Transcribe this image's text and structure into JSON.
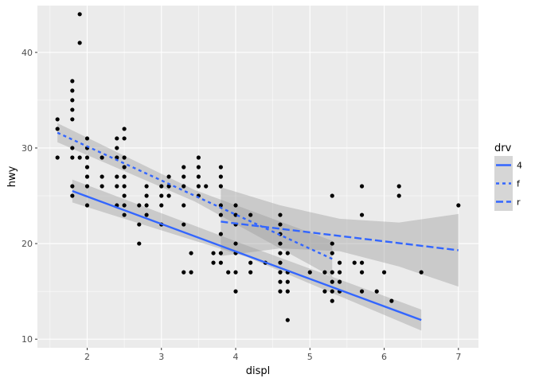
{
  "chart_data": {
    "type": "scatter",
    "xlabel": "displ",
    "ylabel": "hwy",
    "xlim": [
      1.33,
      7.27
    ],
    "ylim": [
      9.1,
      44.9
    ],
    "x_ticks": [
      2,
      3,
      4,
      5,
      6,
      7
    ],
    "y_ticks": [
      10,
      20,
      30,
      40
    ],
    "x_tick_labels": [
      "2",
      "3",
      "4",
      "5",
      "6",
      "7"
    ],
    "y_tick_labels": [
      "10",
      "20",
      "30",
      "40"
    ],
    "grid": true,
    "legend": {
      "title": "drv",
      "position": "right",
      "entries": [
        {
          "label": "4",
          "dash": "solid"
        },
        {
          "label": "f",
          "dash": "short"
        },
        {
          "label": "r",
          "dash": "long"
        }
      ]
    },
    "colors": {
      "panel": "#EBEBEB",
      "grid_major": "#FFFFFF",
      "point": "#000000",
      "line": "#3366FF",
      "ribbon": "#999999"
    },
    "points": [
      [
        1.6,
        33
      ],
      [
        1.6,
        32
      ],
      [
        1.6,
        29
      ],
      [
        1.8,
        37
      ],
      [
        1.8,
        36
      ],
      [
        1.8,
        35
      ],
      [
        1.8,
        34
      ],
      [
        1.8,
        33
      ],
      [
        1.8,
        30
      ],
      [
        1.8,
        29
      ],
      [
        1.8,
        26
      ],
      [
        1.8,
        25
      ],
      [
        1.9,
        44
      ],
      [
        1.9,
        41
      ],
      [
        1.9,
        29
      ],
      [
        2.0,
        31
      ],
      [
        2.0,
        30
      ],
      [
        2.0,
        29
      ],
      [
        2.0,
        28
      ],
      [
        2.0,
        27
      ],
      [
        2.0,
        26
      ],
      [
        2.0,
        24
      ],
      [
        2.2,
        29
      ],
      [
        2.2,
        27
      ],
      [
        2.2,
        26
      ],
      [
        2.4,
        31
      ],
      [
        2.4,
        30
      ],
      [
        2.4,
        29
      ],
      [
        2.4,
        27
      ],
      [
        2.4,
        26
      ],
      [
        2.4,
        24
      ],
      [
        2.5,
        32
      ],
      [
        2.5,
        31
      ],
      [
        2.5,
        29
      ],
      [
        2.5,
        28
      ],
      [
        2.5,
        27
      ],
      [
        2.5,
        26
      ],
      [
        2.5,
        25
      ],
      [
        2.5,
        24
      ],
      [
        2.5,
        23
      ],
      [
        2.7,
        24
      ],
      [
        2.7,
        22
      ],
      [
        2.7,
        20
      ],
      [
        2.8,
        26
      ],
      [
        2.8,
        25
      ],
      [
        2.8,
        24
      ],
      [
        2.8,
        23
      ],
      [
        3.0,
        26
      ],
      [
        3.0,
        25
      ],
      [
        3.0,
        24
      ],
      [
        3.0,
        22
      ],
      [
        3.1,
        27
      ],
      [
        3.1,
        26
      ],
      [
        3.1,
        25
      ],
      [
        3.3,
        28
      ],
      [
        3.3,
        27
      ],
      [
        3.3,
        26
      ],
      [
        3.3,
        24
      ],
      [
        3.3,
        22
      ],
      [
        3.3,
        17
      ],
      [
        3.4,
        19
      ],
      [
        3.4,
        17
      ],
      [
        3.5,
        29
      ],
      [
        3.5,
        28
      ],
      [
        3.5,
        27
      ],
      [
        3.5,
        26
      ],
      [
        3.5,
        25
      ],
      [
        3.6,
        26
      ],
      [
        3.7,
        19
      ],
      [
        3.7,
        18
      ],
      [
        3.8,
        28
      ],
      [
        3.8,
        27
      ],
      [
        3.8,
        26
      ],
      [
        3.8,
        24
      ],
      [
        3.8,
        23
      ],
      [
        3.8,
        21
      ],
      [
        3.8,
        19
      ],
      [
        3.8,
        18
      ],
      [
        3.9,
        17
      ],
      [
        4.0,
        24
      ],
      [
        4.0,
        23
      ],
      [
        4.0,
        22
      ],
      [
        4.0,
        20
      ],
      [
        4.0,
        19
      ],
      [
        4.0,
        17
      ],
      [
        4.0,
        15
      ],
      [
        4.2,
        23
      ],
      [
        4.2,
        18
      ],
      [
        4.2,
        17
      ],
      [
        4.4,
        18
      ],
      [
        4.6,
        23
      ],
      [
        4.6,
        22
      ],
      [
        4.6,
        21
      ],
      [
        4.6,
        20
      ],
      [
        4.6,
        19
      ],
      [
        4.6,
        18
      ],
      [
        4.6,
        17
      ],
      [
        4.6,
        16
      ],
      [
        4.6,
        15
      ],
      [
        4.7,
        19
      ],
      [
        4.7,
        17
      ],
      [
        4.7,
        16
      ],
      [
        4.7,
        15
      ],
      [
        4.7,
        12
      ],
      [
        5.0,
        17
      ],
      [
        5.2,
        17
      ],
      [
        5.2,
        15
      ],
      [
        5.3,
        25
      ],
      [
        5.3,
        20
      ],
      [
        5.3,
        19
      ],
      [
        5.3,
        17
      ],
      [
        5.3,
        16
      ],
      [
        5.3,
        15
      ],
      [
        5.3,
        14
      ],
      [
        5.4,
        18
      ],
      [
        5.4,
        17
      ],
      [
        5.4,
        16
      ],
      [
        5.4,
        15
      ],
      [
        5.6,
        18
      ],
      [
        5.7,
        26
      ],
      [
        5.7,
        23
      ],
      [
        5.7,
        18
      ],
      [
        5.7,
        17
      ],
      [
        5.7,
        15
      ],
      [
        5.9,
        15
      ],
      [
        6.0,
        17
      ],
      [
        6.1,
        14
      ],
      [
        6.2,
        26
      ],
      [
        6.2,
        25
      ],
      [
        6.5,
        17
      ],
      [
        7.0,
        24
      ]
    ],
    "series": [
      {
        "name": "4",
        "dash": "solid",
        "x": [
          1.8,
          6.5
        ],
        "y": [
          25.5,
          12.0
        ],
        "ribbon_x": [
          1.8,
          4.15,
          6.5
        ],
        "ribbon_low": [
          24.3,
          18.6,
          10.9
        ],
        "ribbon_high": [
          26.7,
          19.8,
          13.1
        ]
      },
      {
        "name": "f",
        "dash": "short",
        "x": [
          1.6,
          5.3
        ],
        "y": [
          31.6,
          18.4
        ],
        "ribbon_x": [
          1.6,
          3.45,
          5.3
        ],
        "ribbon_low": [
          30.6,
          24.4,
          16.5
        ],
        "ribbon_high": [
          32.6,
          25.6,
          20.3
        ]
      },
      {
        "name": "r",
        "dash": "long",
        "x": [
          3.8,
          7.0
        ],
        "y": [
          22.3,
          19.3
        ],
        "ribbon_x": [
          3.8,
          4.6,
          5.4,
          6.2,
          7.0
        ],
        "ribbon_low": [
          18.7,
          19.5,
          19.2,
          17.6,
          15.5
        ],
        "ribbon_high": [
          25.9,
          24.0,
          22.6,
          22.2,
          23.1
        ]
      }
    ]
  }
}
